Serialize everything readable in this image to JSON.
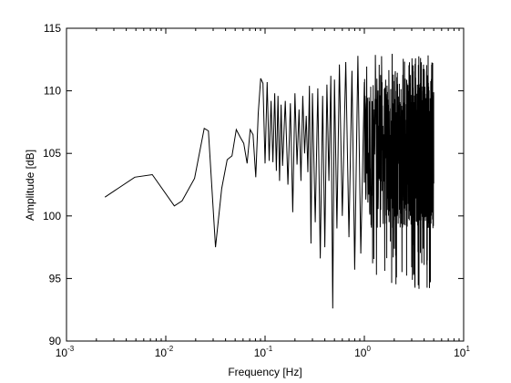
{
  "chart_data": {
    "type": "line",
    "title": "",
    "xlabel": "Frequency [Hz]",
    "ylabel": "Amplitude [dB]",
    "xscale": "log",
    "xlim": [
      0.001,
      10
    ],
    "ylim": [
      90,
      115
    ],
    "grid": false,
    "legend": "none",
    "x_ticks": [
      {
        "value": 0.001,
        "base": "10",
        "exp": "-3"
      },
      {
        "value": 0.01,
        "base": "10",
        "exp": "-2"
      },
      {
        "value": 0.1,
        "base": "10",
        "exp": "-1"
      },
      {
        "value": 1,
        "base": "10",
        "exp": "0"
      },
      {
        "value": 10,
        "base": "10",
        "exp": "1"
      }
    ],
    "y_ticks": [
      {
        "value": 90,
        "label": "90"
      },
      {
        "value": 95,
        "label": "95"
      },
      {
        "value": 100,
        "label": "100"
      },
      {
        "value": 105,
        "label": "105"
      },
      {
        "value": 110,
        "label": "110"
      },
      {
        "value": 115,
        "label": "115"
      }
    ],
    "line_color": "#000000",
    "series": [
      {
        "x": [
          0.00244,
          0.00488,
          0.00732,
          0.0122,
          0.0146,
          0.0195,
          0.0244,
          0.0269,
          0.0317,
          0.0366,
          0.0415,
          0.0464,
          0.0513,
          0.0562,
          0.061,
          0.0659,
          0.0708,
          0.0757,
          0.0806,
          0.0854,
          0.0903,
          0.0952,
          0.1001,
          0.105,
          0.11,
          0.115,
          0.12,
          0.125,
          0.13,
          0.135,
          0.14,
          0.145,
          0.15,
          0.16,
          0.17,
          0.18,
          0.19,
          0.2,
          0.21,
          0.22,
          0.23,
          0.24,
          0.25,
          0.26,
          0.27,
          0.28,
          0.29,
          0.3,
          0.32,
          0.34,
          0.36,
          0.38,
          0.4,
          0.42,
          0.44,
          0.46,
          0.48,
          0.5,
          0.53,
          0.56,
          0.6,
          0.65,
          0.7,
          0.75,
          0.8,
          0.86,
          0.92,
          1.0
        ],
        "y": [
          101.5,
          103.1,
          103.3,
          100.8,
          101.2,
          103.0,
          107.0,
          106.8,
          97.5,
          102.2,
          104.5,
          104.8,
          106.9,
          106.3,
          105.8,
          104.2,
          106.9,
          106.5,
          103.1,
          108.2,
          111.0,
          110.6,
          104.2,
          110.7,
          104.4,
          109.2,
          104.3,
          109.8,
          103.6,
          109.6,
          102.8,
          108.9,
          104.0,
          109.2,
          102.5,
          109.0,
          100.3,
          109.8,
          104.1,
          108.5,
          102.8,
          109.6,
          105.0,
          108.0,
          103.5,
          110.4,
          97.8,
          109.8,
          99.5,
          110.2,
          96.6,
          109.6,
          97.5,
          110.5,
          102.8,
          111.2,
          92.6,
          110.9,
          99.0,
          112.1,
          100.0,
          112.3,
          98.3,
          111.6,
          95.7,
          112.8,
          97.0,
          110.7
        ]
      }
    ]
  }
}
